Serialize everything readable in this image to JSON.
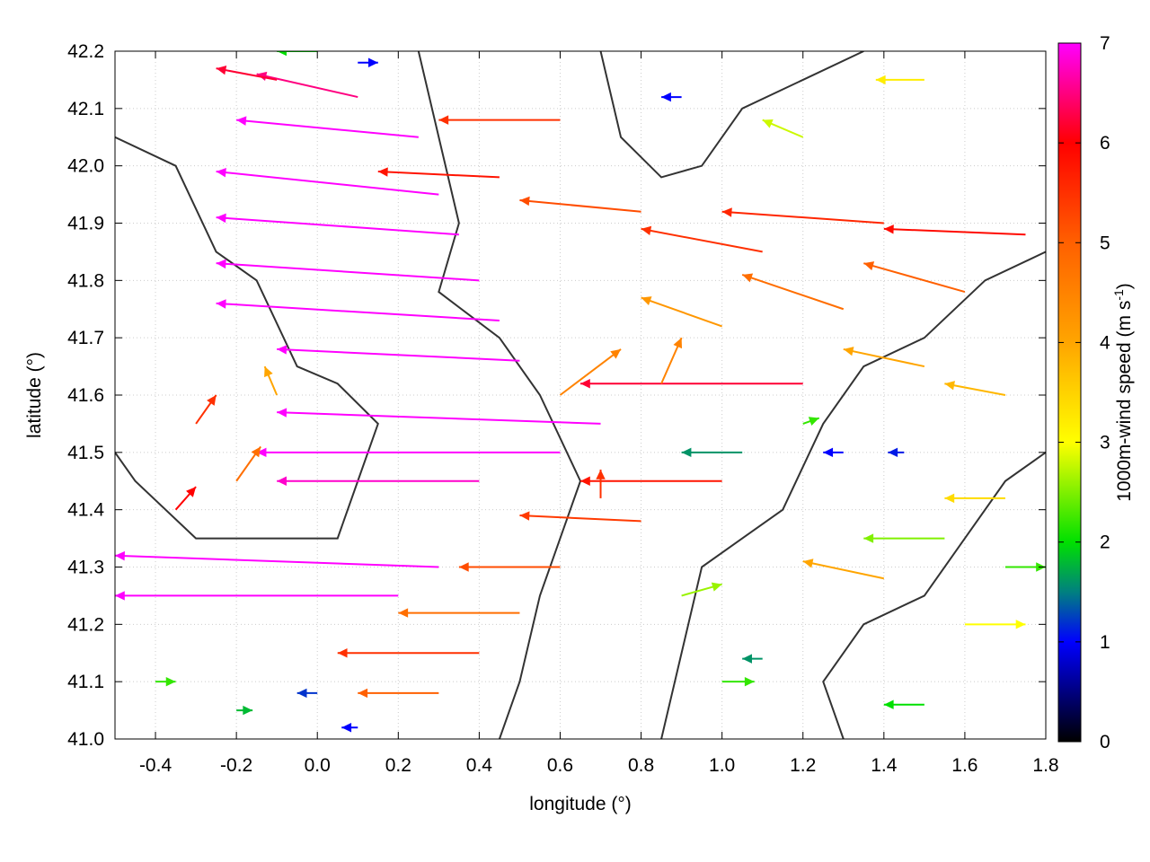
{
  "chart_data": {
    "type": "vector-field",
    "xlabel": "longitude (°)",
    "ylabel": "latitude (°)",
    "xlim": [
      -0.5,
      1.8
    ],
    "ylim": [
      41.0,
      42.2
    ],
    "xticks": [
      -0.4,
      -0.2,
      0.0,
      0.2,
      0.4,
      0.6,
      0.8,
      1.0,
      1.2,
      1.4,
      1.6,
      1.8
    ],
    "xtick_labels": [
      "-0.4",
      "-0.2",
      "0.0",
      "0.2",
      "0.4",
      "0.6",
      "0.8",
      "1.0",
      "1.2",
      "1.4",
      "1.6",
      "1.8"
    ],
    "yticks": [
      41.0,
      41.1,
      41.2,
      41.3,
      41.4,
      41.5,
      41.6,
      41.7,
      41.8,
      41.9,
      42.0,
      42.1,
      42.2
    ],
    "ytick_labels": [
      "41.0",
      "41.1",
      "41.2",
      "41.3",
      "41.4",
      "41.5",
      "41.6",
      "41.7",
      "41.8",
      "41.9",
      "42.0",
      "42.1",
      "42.2"
    ],
    "grid": true,
    "colorbar": {
      "label": "1000m-wind speed (m s",
      "label_sup": "-1",
      "label_end": ")",
      "range": [
        0,
        7
      ],
      "ticks": [
        "0",
        "1",
        "2",
        "3",
        "4",
        "5",
        "6",
        "7"
      ],
      "palette": [
        [
          0,
          "#000000"
        ],
        [
          1,
          "#0000ff"
        ],
        [
          1.5,
          "#008080"
        ],
        [
          2,
          "#00e000"
        ],
        [
          3,
          "#ffff00"
        ],
        [
          4,
          "#ffa500"
        ],
        [
          5,
          "#ff6000"
        ],
        [
          6,
          "#ff0000"
        ],
        [
          7,
          "#ff00ff"
        ]
      ]
    },
    "vectors_note": "lon, lat, dlon, dlat, speed",
    "vectors": [
      [
        0.25,
        42.05,
        -0.45,
        0.03,
        7
      ],
      [
        0.3,
        41.95,
        -0.55,
        0.04,
        7
      ],
      [
        0.35,
        41.88,
        -0.6,
        0.03,
        7
      ],
      [
        0.4,
        41.8,
        -0.65,
        0.03,
        7
      ],
      [
        0.45,
        41.73,
        -0.7,
        0.03,
        7
      ],
      [
        0.5,
        41.66,
        -0.6,
        0.02,
        7
      ],
      [
        0.7,
        41.55,
        -0.8,
        0.02,
        7
      ],
      [
        0.6,
        41.5,
        -0.75,
        0.0,
        7
      ],
      [
        0.4,
        41.45,
        -0.5,
        0.0,
        6.8
      ],
      [
        0.3,
        41.3,
        -0.8,
        0.02,
        7
      ],
      [
        0.2,
        41.25,
        -0.7,
        0.0,
        7
      ],
      [
        0.1,
        42.12,
        -0.25,
        0.04,
        6.5
      ],
      [
        -0.1,
        42.15,
        -0.15,
        0.02,
        6.2
      ],
      [
        0.45,
        41.98,
        -0.3,
        0.01,
        5.8
      ],
      [
        0.6,
        42.08,
        -0.3,
        0.0,
        5.5
      ],
      [
        0.8,
        41.92,
        -0.3,
        0.02,
        5.2
      ],
      [
        1.1,
        41.85,
        -0.3,
        0.04,
        5.5
      ],
      [
        1.4,
        41.9,
        -0.4,
        0.02,
        5.6
      ],
      [
        1.75,
        41.88,
        -0.35,
        0.01,
        5.9
      ],
      [
        1.6,
        41.78,
        -0.25,
        0.05,
        5.0
      ],
      [
        1.3,
        41.75,
        -0.25,
        0.06,
        4.8
      ],
      [
        1.0,
        41.72,
        -0.2,
        0.05,
        4.2
      ],
      [
        1.5,
        41.65,
        -0.2,
        0.03,
        4.0
      ],
      [
        1.7,
        41.6,
        -0.15,
        0.02,
        3.8
      ],
      [
        1.2,
        41.62,
        -0.55,
        0.0,
        6.2
      ],
      [
        1.0,
        41.45,
        -0.35,
        0.0,
        5.8
      ],
      [
        0.8,
        41.38,
        -0.3,
        0.01,
        5.4
      ],
      [
        0.6,
        41.3,
        -0.25,
        0.0,
        5.2
      ],
      [
        0.5,
        41.22,
        -0.3,
        0.0,
        4.8
      ],
      [
        0.4,
        41.15,
        -0.35,
        0.0,
        5.5
      ],
      [
        0.3,
        41.08,
        -0.2,
        0.0,
        5.0
      ],
      [
        -0.3,
        41.55,
        0.05,
        0.05,
        5.5
      ],
      [
        -0.2,
        41.45,
        0.06,
        0.06,
        4.8
      ],
      [
        -0.35,
        41.4,
        0.05,
        0.04,
        6.0
      ],
      [
        -0.1,
        41.6,
        -0.03,
        0.05,
        4.0
      ],
      [
        -0.4,
        41.1,
        0.05,
        0.0,
        2.2
      ],
      [
        -0.2,
        41.05,
        0.04,
        0.0,
        1.8
      ],
      [
        0.0,
        41.08,
        -0.05,
        0.0,
        1.2
      ],
      [
        0.1,
        41.02,
        -0.04,
        0.0,
        1.0
      ],
      [
        1.3,
        41.5,
        -0.05,
        0.0,
        1.0
      ],
      [
        1.45,
        41.5,
        -0.04,
        0.0,
        1.1
      ],
      [
        1.2,
        41.55,
        0.04,
        0.01,
        2.2
      ],
      [
        1.0,
        41.1,
        0.08,
        0.0,
        2.2
      ],
      [
        1.1,
        41.14,
        -0.05,
        0.0,
        1.6
      ],
      [
        1.5,
        41.06,
        -0.1,
        0.0,
        2.0
      ],
      [
        1.6,
        41.2,
        0.15,
        0.0,
        3.0
      ],
      [
        1.7,
        41.3,
        0.1,
        0.0,
        2.2
      ],
      [
        1.4,
        41.28,
        -0.2,
        0.03,
        4.0
      ],
      [
        0.9,
        41.25,
        0.1,
        0.02,
        2.6
      ],
      [
        0.7,
        41.42,
        0.0,
        0.05,
        5.5
      ],
      [
        0.85,
        41.62,
        0.05,
        0.08,
        4.5
      ],
      [
        0.9,
        42.12,
        -0.05,
        0.0,
        1.0
      ],
      [
        1.2,
        42.05,
        -0.1,
        0.03,
        2.8
      ],
      [
        1.5,
        42.15,
        -0.12,
        0.0,
        3.2
      ],
      [
        0.0,
        42.2,
        -0.1,
        0.0,
        2.0
      ],
      [
        0.1,
        42.18,
        0.05,
        0.0,
        1.0
      ],
      [
        0.6,
        41.6,
        0.15,
        0.08,
        4.5
      ],
      [
        1.7,
        41.42,
        -0.15,
        0.0,
        3.4
      ],
      [
        1.55,
        41.35,
        -0.2,
        0.0,
        2.5
      ],
      [
        1.05,
        41.5,
        -0.15,
        0.0,
        1.6
      ]
    ],
    "contours_note": "lon, lat polylines",
    "contours": [
      [
        [
          -0.5,
          42.05
        ],
        [
          -0.35,
          42.0
        ],
        [
          -0.25,
          41.85
        ],
        [
          -0.15,
          41.8
        ],
        [
          -0.05,
          41.65
        ],
        [
          0.05,
          41.62
        ],
        [
          0.15,
          41.55
        ],
        [
          0.1,
          41.45
        ],
        [
          0.05,
          41.35
        ],
        [
          -0.1,
          41.35
        ],
        [
          -0.3,
          41.35
        ],
        [
          -0.45,
          41.45
        ],
        [
          -0.5,
          41.5
        ]
      ],
      [
        [
          0.25,
          42.2
        ],
        [
          0.3,
          42.05
        ],
        [
          0.35,
          41.9
        ],
        [
          0.3,
          41.78
        ],
        [
          0.45,
          41.7
        ],
        [
          0.55,
          41.6
        ],
        [
          0.65,
          41.45
        ],
        [
          0.6,
          41.35
        ],
        [
          0.55,
          41.25
        ],
        [
          0.5,
          41.1
        ],
        [
          0.45,
          41.0
        ]
      ],
      [
        [
          0.85,
          41.0
        ],
        [
          0.9,
          41.15
        ],
        [
          0.95,
          41.3
        ],
        [
          1.05,
          41.35
        ],
        [
          1.15,
          41.4
        ],
        [
          1.25,
          41.55
        ],
        [
          1.35,
          41.65
        ],
        [
          1.5,
          41.7
        ],
        [
          1.65,
          41.8
        ],
        [
          1.8,
          41.85
        ]
      ],
      [
        [
          0.7,
          42.2
        ],
        [
          0.75,
          42.05
        ],
        [
          0.85,
          41.98
        ],
        [
          0.95,
          42.0
        ],
        [
          1.05,
          42.1
        ],
        [
          1.2,
          42.15
        ],
        [
          1.35,
          42.2
        ]
      ],
      [
        [
          1.3,
          41.0
        ],
        [
          1.25,
          41.1
        ],
        [
          1.35,
          41.2
        ],
        [
          1.5,
          41.25
        ],
        [
          1.6,
          41.35
        ],
        [
          1.7,
          41.45
        ],
        [
          1.8,
          41.5
        ]
      ]
    ]
  }
}
